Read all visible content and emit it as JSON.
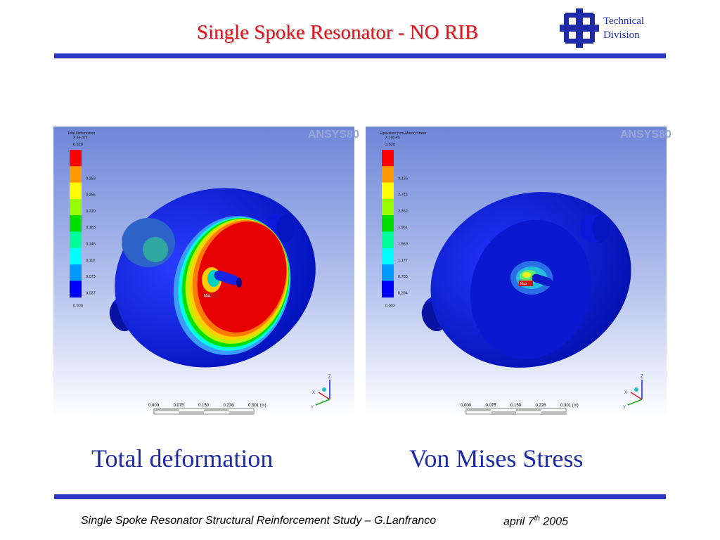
{
  "title": "Single Spoke Resonator - NO RIB",
  "logo": {
    "line1": "Technical",
    "line2": "Division",
    "icon": "fermilab-logo-icon",
    "color": "#1f2aa6"
  },
  "colors": {
    "title": "#e0141e",
    "rule": "#2e36c8",
    "caption": "#1f2aa6"
  },
  "panels": [
    {
      "brand": "ANSYS80",
      "legend_title": "Total Deformation",
      "legend_unit": "X 1e-3 m",
      "legend_values": [
        "0.329",
        "0.293",
        "0.256",
        "0.220",
        "0.183",
        "0.146",
        "0.110",
        "0.073",
        "0.037",
        "0.000"
      ],
      "max_label": "Max",
      "scale_ticks": [
        "0.000",
        "0.075",
        "0.150",
        "0.226",
        "0.301 (m)"
      ],
      "axis_labels": {
        "z": "Z",
        "x": "X",
        "y": "Y"
      },
      "caption": "Total deformation"
    },
    {
      "brand": "ANSYS80",
      "legend_title": "Equivalent (von-Mises) Stress",
      "legend_unit": "X 1e8 Pa",
      "legend_values": [
        "3.528",
        "3.136",
        "2.744",
        "2.352",
        "1.961",
        "1.569",
        "1.177",
        "0.785",
        "0.394",
        "0.002"
      ],
      "max_label": "Max",
      "scale_ticks": [
        "0.000",
        "0.075",
        "0.150",
        "0.226",
        "0.301 (m)"
      ],
      "axis_labels": {
        "z": "Z",
        "x": "X",
        "y": "Y"
      },
      "caption": "Von Mises Stress"
    }
  ],
  "legend_colors": [
    "#ff0000",
    "#ff9900",
    "#ffff00",
    "#99ff00",
    "#00dd00",
    "#00ff99",
    "#00ffff",
    "#0099ff",
    "#0000ff"
  ],
  "footer": {
    "study": "Single Spoke Resonator Structural Reinforcement Study – G.Lanfranco",
    "date_pre": "april 7",
    "date_sup": "th",
    "date_post": " 2005"
  }
}
